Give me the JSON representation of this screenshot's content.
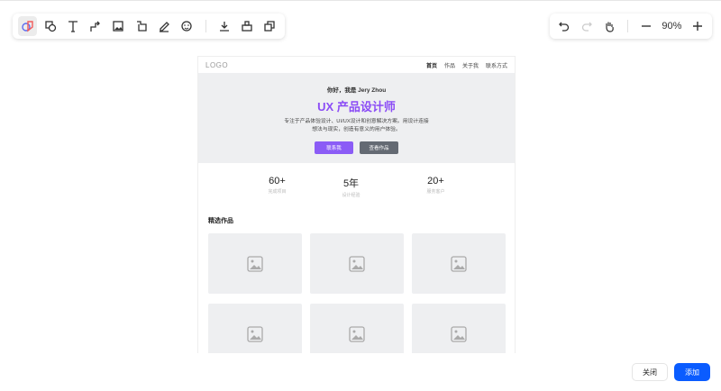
{
  "toolbar_left": {
    "tools": [
      "shapes-icon",
      "shape-icon",
      "text-icon",
      "connector-icon",
      "image-icon",
      "frame-icon",
      "pen-icon",
      "sticker-icon"
    ],
    "actions": [
      "download-icon",
      "format-painter-icon",
      "copy-icon"
    ]
  },
  "toolbar_right": {
    "zoom": "90%"
  },
  "preview": {
    "logo": "LOGO",
    "nav": [
      "首页",
      "作品",
      "关于我",
      "联系方式"
    ],
    "hero": {
      "greeting": "你好，我是 Jery Zhou",
      "title": "UX 产品设计师",
      "desc1": "专注于产品体验设计、UI/UX设计和创意解决方案。用设计连接",
      "desc2": "想法与现实，创造有意义的用户体验。",
      "primary": "联系我",
      "secondary": "查看作品"
    },
    "stats": [
      {
        "value": "60+",
        "label": "完成项目"
      },
      {
        "value": "5年",
        "label": "设计经验"
      },
      {
        "value": "20+",
        "label": "服务客户"
      }
    ],
    "section_title": "精选作品",
    "colors": {
      "accent": "#8b5cf6",
      "secondary": "#646a73",
      "hero_bg": "#eeeff1"
    }
  },
  "footer": {
    "close": "关闭",
    "add": "添加",
    "add_color": "#0a5cff"
  }
}
